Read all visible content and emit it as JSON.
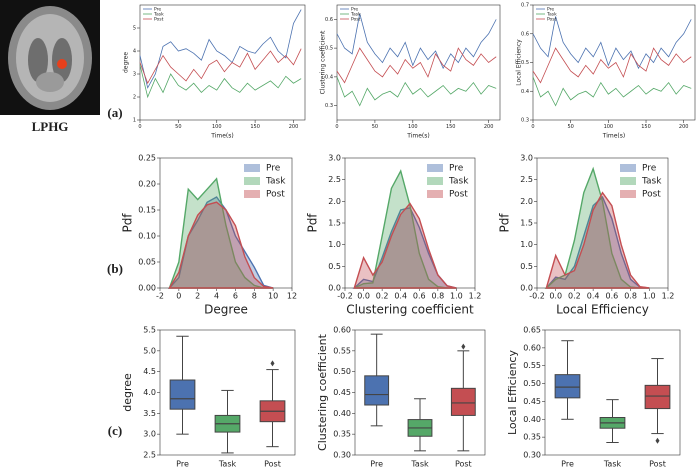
{
  "image_label": "LPHG",
  "panel_labels": [
    "(a)",
    "(b)",
    "(c)"
  ],
  "chart_data": [
    {
      "type": "line",
      "xlabel": "Time(s)",
      "ylabel": "degree",
      "x": [
        0,
        10,
        20,
        30,
        40,
        50,
        60,
        70,
        80,
        90,
        100,
        110,
        120,
        130,
        140,
        150,
        160,
        170,
        180,
        190,
        200,
        210
      ],
      "xlim": [
        0,
        215
      ],
      "xticks": [
        0,
        50,
        100,
        150,
        200
      ],
      "ylim": [
        1,
        6
      ],
      "yticks": [
        1,
        2,
        3,
        4,
        5
      ],
      "series": [
        {
          "name": "Pre",
          "color": "#4c72b0",
          "values": [
            3.8,
            2.4,
            3.0,
            4.2,
            4.4,
            4.0,
            4.1,
            3.9,
            3.6,
            4.5,
            4.0,
            3.8,
            3.5,
            4.2,
            4.0,
            3.9,
            4.3,
            4.6,
            4.0,
            3.7,
            5.2,
            5.8
          ]
        },
        {
          "name": "Task",
          "color": "#55a868",
          "values": [
            3.4,
            2.0,
            2.8,
            2.2,
            3.0,
            2.5,
            2.3,
            2.6,
            2.2,
            2.5,
            2.3,
            2.8,
            2.4,
            2.2,
            2.6,
            2.3,
            2.5,
            2.7,
            2.4,
            2.9,
            2.6,
            2.8
          ]
        },
        {
          "name": "Post",
          "color": "#c44e52",
          "values": [
            3.5,
            2.6,
            3.2,
            3.8,
            3.3,
            3.0,
            2.7,
            3.2,
            2.8,
            3.4,
            3.6,
            3.1,
            3.5,
            3.3,
            3.9,
            3.2,
            3.6,
            4.0,
            3.5,
            3.8,
            3.4,
            4.1
          ]
        }
      ]
    },
    {
      "type": "line",
      "xlabel": "Time(s)",
      "ylabel": "Clustering coefficient",
      "x": [
        0,
        10,
        20,
        30,
        40,
        50,
        60,
        70,
        80,
        90,
        100,
        110,
        120,
        130,
        140,
        150,
        160,
        170,
        180,
        190,
        200,
        210
      ],
      "xlim": [
        0,
        215
      ],
      "xticks": [
        0,
        50,
        100,
        150,
        200
      ],
      "ylim": [
        0.25,
        0.65
      ],
      "yticks": [
        0.3,
        0.4,
        0.5,
        0.6
      ],
      "series": [
        {
          "name": "Pre",
          "color": "#4c72b0",
          "values": [
            0.55,
            0.5,
            0.48,
            0.62,
            0.52,
            0.48,
            0.45,
            0.5,
            0.47,
            0.52,
            0.44,
            0.5,
            0.46,
            0.49,
            0.43,
            0.48,
            0.45,
            0.5,
            0.47,
            0.52,
            0.55,
            0.6
          ]
        },
        {
          "name": "Task",
          "color": "#55a868",
          "values": [
            0.4,
            0.33,
            0.35,
            0.3,
            0.36,
            0.32,
            0.34,
            0.35,
            0.33,
            0.38,
            0.34,
            0.36,
            0.33,
            0.35,
            0.37,
            0.34,
            0.36,
            0.35,
            0.38,
            0.34,
            0.37,
            0.36
          ]
        },
        {
          "name": "Post",
          "color": "#c44e52",
          "values": [
            0.42,
            0.38,
            0.44,
            0.5,
            0.46,
            0.42,
            0.4,
            0.44,
            0.41,
            0.46,
            0.43,
            0.45,
            0.4,
            0.48,
            0.44,
            0.42,
            0.5,
            0.46,
            0.44,
            0.48,
            0.45,
            0.47
          ]
        }
      ]
    },
    {
      "type": "line",
      "xlabel": "Time(s)",
      "ylabel": "Local Efficiency",
      "x": [
        0,
        10,
        20,
        30,
        40,
        50,
        60,
        70,
        80,
        90,
        100,
        110,
        120,
        130,
        140,
        150,
        160,
        170,
        180,
        190,
        200,
        210
      ],
      "xlim": [
        0,
        215
      ],
      "xticks": [
        0,
        50,
        100,
        150,
        200
      ],
      "ylim": [
        0.3,
        0.7
      ],
      "yticks": [
        0.3,
        0.4,
        0.5,
        0.6,
        0.7
      ],
      "series": [
        {
          "name": "Pre",
          "color": "#4c72b0",
          "values": [
            0.6,
            0.55,
            0.52,
            0.66,
            0.57,
            0.53,
            0.5,
            0.55,
            0.52,
            0.57,
            0.49,
            0.55,
            0.51,
            0.54,
            0.48,
            0.53,
            0.5,
            0.55,
            0.52,
            0.57,
            0.6,
            0.65
          ]
        },
        {
          "name": "Task",
          "color": "#55a868",
          "values": [
            0.45,
            0.38,
            0.4,
            0.35,
            0.41,
            0.37,
            0.39,
            0.4,
            0.38,
            0.43,
            0.39,
            0.41,
            0.38,
            0.4,
            0.42,
            0.39,
            0.41,
            0.4,
            0.43,
            0.39,
            0.42,
            0.41
          ]
        },
        {
          "name": "Post",
          "color": "#c44e52",
          "values": [
            0.47,
            0.43,
            0.49,
            0.55,
            0.51,
            0.47,
            0.45,
            0.49,
            0.46,
            0.51,
            0.48,
            0.5,
            0.45,
            0.53,
            0.49,
            0.47,
            0.55,
            0.51,
            0.49,
            0.53,
            0.5,
            0.52
          ]
        }
      ]
    },
    {
      "type": "area",
      "xlabel": "Degree",
      "ylabel": "Pdf",
      "legend": "upper right",
      "x": [
        -1,
        0,
        1,
        2,
        3,
        4,
        5,
        6,
        7,
        8,
        9,
        10
      ],
      "xlim": [
        -2,
        12
      ],
      "xticks": [
        -2,
        0,
        2,
        4,
        6,
        8,
        10,
        12
      ],
      "ylim": [
        0,
        0.25
      ],
      "yticks": [
        {
          "value": 0,
          "label": "0.00"
        },
        0.05,
        {
          "value": 0.1,
          "label": "0.10"
        },
        0.15,
        {
          "value": 0.2,
          "label": "0.20"
        },
        0.25
      ],
      "series": [
        {
          "name": "Pre",
          "color": "#4c72b0",
          "values": [
            0,
            0.02,
            0.1,
            0.13,
            0.165,
            0.175,
            0.15,
            0.1,
            0.07,
            0.04,
            0.005,
            0
          ]
        },
        {
          "name": "Task",
          "color": "#55a868",
          "values": [
            0,
            0.05,
            0.19,
            0.17,
            0.19,
            0.21,
            0.12,
            0.05,
            0.02,
            0.005,
            0,
            0
          ]
        },
        {
          "name": "Post",
          "color": "#c44e52",
          "values": [
            0,
            0.03,
            0.1,
            0.14,
            0.16,
            0.165,
            0.15,
            0.12,
            0.06,
            0.02,
            0.003,
            0
          ]
        }
      ]
    },
    {
      "type": "area",
      "xlabel": "Clustering coefficient",
      "ylabel": "Pdf",
      "legend": "upper right",
      "x": [
        -0.1,
        0,
        0.1,
        0.2,
        0.3,
        0.4,
        0.5,
        0.6,
        0.7,
        0.8,
        0.9,
        1.0
      ],
      "xlim": [
        -0.2,
        1.2
      ],
      "xticks": [
        -0.2,
        {
          "value": 0,
          "label": "0.0"
        },
        0.2,
        0.4,
        0.6,
        0.8,
        {
          "value": 1,
          "label": "1.0"
        },
        1.2
      ],
      "ylim": [
        0,
        3
      ],
      "yticks": [
        {
          "value": 0,
          "label": "0.0"
        },
        0.5,
        {
          "value": 1,
          "label": "1.0"
        },
        1.5,
        {
          "value": 2,
          "label": "2.0"
        },
        2.5,
        {
          "value": 3,
          "label": "3.0"
        }
      ],
      "series": [
        {
          "name": "Pre",
          "color": "#4c72b0",
          "values": [
            0,
            0.2,
            0.15,
            0.7,
            1.3,
            1.8,
            1.85,
            1.4,
            0.8,
            0.3,
            0.05,
            0
          ]
        },
        {
          "name": "Task",
          "color": "#55a868",
          "values": [
            0,
            0.1,
            0.12,
            1.2,
            2.3,
            2.7,
            1.9,
            0.8,
            0.2,
            0.03,
            0,
            0
          ]
        },
        {
          "name": "Post",
          "color": "#c44e52",
          "values": [
            0,
            0.7,
            0.3,
            0.6,
            1.2,
            1.7,
            1.95,
            1.6,
            0.9,
            0.3,
            0.05,
            0
          ]
        }
      ]
    },
    {
      "type": "area",
      "xlabel": "Local Efficiency",
      "ylabel": "Pdf",
      "legend": "upper right",
      "x": [
        -0.1,
        0,
        0.1,
        0.2,
        0.3,
        0.4,
        0.5,
        0.6,
        0.7,
        0.8,
        0.9,
        1.0
      ],
      "xlim": [
        -0.2,
        1.2
      ],
      "xticks": [
        -0.2,
        {
          "value": 0,
          "label": "0.0"
        },
        0.2,
        0.4,
        0.6,
        0.8,
        {
          "value": 1,
          "label": "1.0"
        },
        1.2
      ],
      "ylim": [
        0,
        3
      ],
      "yticks": [
        {
          "value": 0,
          "label": "0.0"
        },
        0.5,
        {
          "value": 1,
          "label": "1.0"
        },
        1.5,
        {
          "value": 2,
          "label": "2.0"
        },
        2.5,
        {
          "value": 3,
          "label": "3.0"
        }
      ],
      "series": [
        {
          "name": "Pre",
          "color": "#4c72b0",
          "values": [
            0,
            0.25,
            0.2,
            0.5,
            1.2,
            1.9,
            2.1,
            1.6,
            0.8,
            0.2,
            0.02,
            0
          ]
        },
        {
          "name": "Task",
          "color": "#55a868",
          "values": [
            0,
            0.2,
            0.3,
            1.1,
            2.2,
            2.75,
            2.0,
            0.8,
            0.2,
            0.02,
            0,
            0
          ]
        },
        {
          "name": "Post",
          "color": "#c44e52",
          "values": [
            0,
            0.75,
            0.3,
            0.4,
            1.0,
            1.8,
            2.2,
            1.9,
            1.0,
            0.3,
            0.03,
            0
          ]
        }
      ]
    },
    {
      "type": "box",
      "ylabel": "degree",
      "categories": [
        "Pre",
        "Task",
        "Post"
      ],
      "colors": [
        "#4c72b0",
        "#55a868",
        "#c44e52"
      ],
      "ylim": [
        2.5,
        5.5
      ],
      "yticks": [
        2.5,
        {
          "value": 3,
          "label": "3.0"
        },
        3.5,
        {
          "value": 4,
          "label": "4.0"
        },
        4.5,
        {
          "value": 5,
          "label": "5.0"
        },
        5.5
      ],
      "boxes": [
        {
          "whislo": 3.0,
          "q1": 3.6,
          "med": 3.85,
          "q3": 4.3,
          "whishi": 5.35
        },
        {
          "whislo": 2.55,
          "q1": 3.05,
          "med": 3.25,
          "q3": 3.45,
          "whishi": 4.05
        },
        {
          "whislo": 2.7,
          "q1": 3.3,
          "med": 3.55,
          "q3": 3.8,
          "whishi": 4.55,
          "fliers": [
            4.7
          ]
        }
      ]
    },
    {
      "type": "box",
      "ylabel": "Clustering coefficient",
      "categories": [
        "Pre",
        "Task",
        "Post"
      ],
      "colors": [
        "#4c72b0",
        "#55a868",
        "#c44e52"
      ],
      "ylim": [
        0.3,
        0.6
      ],
      "yticks": [
        {
          "value": 0.3,
          "label": "0.30"
        },
        0.35,
        {
          "value": 0.4,
          "label": "0.40"
        },
        0.45,
        {
          "value": 0.5,
          "label": "0.50"
        },
        0.55,
        {
          "value": 0.6,
          "label": "0.60"
        }
      ],
      "boxes": [
        {
          "whislo": 0.37,
          "q1": 0.42,
          "med": 0.445,
          "q3": 0.49,
          "whishi": 0.59
        },
        {
          "whislo": 0.31,
          "q1": 0.345,
          "med": 0.365,
          "q3": 0.385,
          "whishi": 0.435
        },
        {
          "whislo": 0.31,
          "q1": 0.395,
          "med": 0.425,
          "q3": 0.46,
          "whishi": 0.55,
          "fliers": [
            0.56
          ]
        }
      ]
    },
    {
      "type": "box",
      "ylabel": "Local Efficiency",
      "categories": [
        "Pre",
        "Task",
        "Post"
      ],
      "colors": [
        "#4c72b0",
        "#55a868",
        "#c44e52"
      ],
      "ylim": [
        0.3,
        0.65
      ],
      "yticks": [
        {
          "value": 0.3,
          "label": "0.30"
        },
        0.35,
        {
          "value": 0.4,
          "label": "0.40"
        },
        0.45,
        {
          "value": 0.5,
          "label": "0.50"
        },
        0.55,
        {
          "value": 0.6,
          "label": "0.60"
        },
        0.65
      ],
      "boxes": [
        {
          "whislo": 0.4,
          "q1": 0.46,
          "med": 0.49,
          "q3": 0.525,
          "whishi": 0.62
        },
        {
          "whislo": 0.335,
          "q1": 0.375,
          "med": 0.39,
          "q3": 0.405,
          "whishi": 0.455
        },
        {
          "whislo": 0.36,
          "q1": 0.43,
          "med": 0.465,
          "q3": 0.495,
          "whishi": 0.57,
          "fliers": [
            0.34
          ]
        }
      ]
    }
  ]
}
